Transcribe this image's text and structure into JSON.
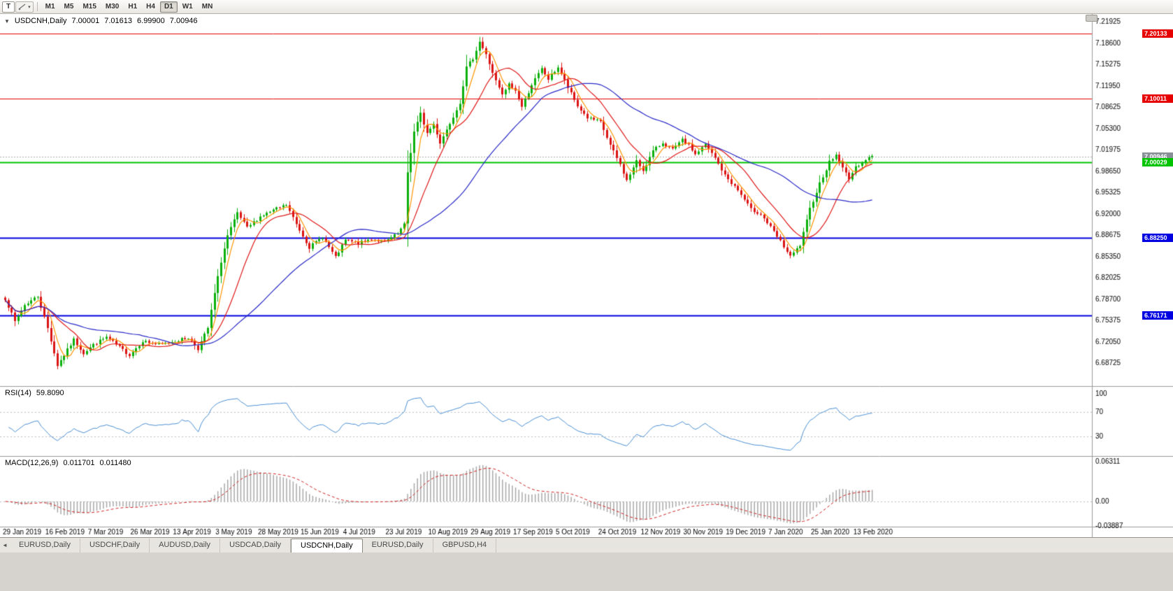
{
  "icons": {
    "chart_menu": "▼",
    "tool_caret": "▾",
    "tabs_scroll": "◄"
  },
  "toolbar": {
    "tool_button": "T",
    "timeframes": [
      "M1",
      "M5",
      "M15",
      "M30",
      "H1",
      "H4",
      "D1",
      "W1",
      "MN"
    ],
    "active_timeframe": "D1"
  },
  "chart": {
    "symbol_period": "USDCNH,Daily",
    "open": "7.00001",
    "high": "7.01613",
    "low": "6.99900",
    "close": "7.00946"
  },
  "indicators": {
    "rsi": {
      "name": "RSI(14)",
      "value": "59.8090"
    },
    "macd": {
      "name": "MACD(12,26,9)",
      "value_main": "0.011701",
      "value_signal": "0.011480"
    }
  },
  "tabs": [
    {
      "label": "EURUSD,Daily",
      "active": false
    },
    {
      "label": "USDCHF,Daily",
      "active": false
    },
    {
      "label": "AUDUSD,Daily",
      "active": false
    },
    {
      "label": "USDCAD,Daily",
      "active": false
    },
    {
      "label": "USDCNH,Daily",
      "active": true
    },
    {
      "label": "EURUSD,Daily",
      "active": false
    },
    {
      "label": "GBPUSD,H4",
      "active": false
    }
  ],
  "chart_data": {
    "type": "candlestick+indicators",
    "seed": 7,
    "num_bars": 266,
    "bars_per_label": 13,
    "price_range": {
      "min": 6.656,
      "max": 7.2285
    },
    "y_axis_ticks": [
      "7.21925",
      "7.18600",
      "7.15275",
      "7.11950",
      "7.08625",
      "7.05300",
      "7.01975",
      "6.98650",
      "6.95325",
      "6.92000",
      "6.88675",
      "6.85350",
      "6.82025",
      "6.78700",
      "6.75375",
      "6.72050",
      "6.68725",
      "6.65400"
    ],
    "x_axis_dates": [
      "29 Jan 2019",
      "16 Feb 2019",
      "7 Mar 2019",
      "26 Mar 2019",
      "13 Apr 2019",
      "3 May 2019",
      "28 May 2019",
      "15 Jun 2019",
      "4 Jul 2019",
      "23 Jul 2019",
      "10 Aug 2019",
      "29 Aug 2019",
      "17 Sep 2019",
      "5 Oct 2019",
      "24 Oct 2019",
      "12 Nov 2019",
      "30 Nov 2019",
      "19 Dec 2019",
      "7 Jan 2020",
      "25 Jan 2020",
      "13 Feb 2020"
    ],
    "anchors": [
      [
        0,
        6.788
      ],
      [
        3,
        6.752
      ],
      [
        6,
        6.778
      ],
      [
        10,
        6.792
      ],
      [
        13,
        6.742
      ],
      [
        16,
        6.684
      ],
      [
        18,
        6.7
      ],
      [
        21,
        6.724
      ],
      [
        24,
        6.703
      ],
      [
        27,
        6.716
      ],
      [
        31,
        6.728
      ],
      [
        35,
        6.712
      ],
      [
        38,
        6.7
      ],
      [
        42,
        6.722
      ],
      [
        47,
        6.716
      ],
      [
        52,
        6.722
      ],
      [
        56,
        6.727
      ],
      [
        59,
        6.71
      ],
      [
        62,
        6.742
      ],
      [
        64,
        6.796
      ],
      [
        66,
        6.846
      ],
      [
        68,
        6.886
      ],
      [
        71,
        6.921
      ],
      [
        74,
        6.898
      ],
      [
        78,
        6.916
      ],
      [
        83,
        6.928
      ],
      [
        86,
        6.934
      ],
      [
        89,
        6.904
      ],
      [
        93,
        6.868
      ],
      [
        97,
        6.884
      ],
      [
        101,
        6.852
      ],
      [
        104,
        6.879
      ],
      [
        108,
        6.874
      ],
      [
        112,
        6.881
      ],
      [
        116,
        6.876
      ],
      [
        120,
        6.889
      ],
      [
        122,
        6.903
      ],
      [
        123,
        6.985
      ],
      [
        125,
        7.048
      ],
      [
        127,
        7.076
      ],
      [
        129,
        7.046
      ],
      [
        131,
        7.06
      ],
      [
        133,
        7.031
      ],
      [
        136,
        7.062
      ],
      [
        139,
        7.094
      ],
      [
        141,
        7.148
      ],
      [
        143,
        7.163
      ],
      [
        145,
        7.189
      ],
      [
        147,
        7.168
      ],
      [
        150,
        7.127
      ],
      [
        152,
        7.105
      ],
      [
        154,
        7.122
      ],
      [
        156,
        7.112
      ],
      [
        158,
        7.087
      ],
      [
        161,
        7.122
      ],
      [
        164,
        7.146
      ],
      [
        166,
        7.13
      ],
      [
        169,
        7.149
      ],
      [
        172,
        7.117
      ],
      [
        175,
        7.088
      ],
      [
        178,
        7.07
      ],
      [
        182,
        7.063
      ],
      [
        185,
        7.027
      ],
      [
        188,
        6.997
      ],
      [
        190,
        6.972
      ],
      [
        193,
        7.002
      ],
      [
        195,
        6.988
      ],
      [
        198,
        7.018
      ],
      [
        201,
        7.031
      ],
      [
        204,
        7.02
      ],
      [
        207,
        7.035
      ],
      [
        209,
        7.027
      ],
      [
        211,
        7.013
      ],
      [
        214,
        7.028
      ],
      [
        217,
        7.007
      ],
      [
        220,
        6.98
      ],
      [
        224,
        6.957
      ],
      [
        228,
        6.927
      ],
      [
        231,
        6.92
      ],
      [
        234,
        6.899
      ],
      [
        237,
        6.877
      ],
      [
        240,
        6.853
      ],
      [
        243,
        6.871
      ],
      [
        246,
        6.928
      ],
      [
        249,
        6.968
      ],
      [
        252,
        7.001
      ],
      [
        254,
        7.012
      ],
      [
        256,
        6.991
      ],
      [
        258,
        6.976
      ],
      [
        260,
        6.992
      ],
      [
        262,
        7.002
      ],
      [
        265,
        7.0095
      ]
    ],
    "hlines": [
      {
        "price": 7.20133,
        "label": "7.20133",
        "color": "#e60000",
        "width": 1
      },
      {
        "price": 7.10011,
        "label": "7.10011",
        "color": "#e60000",
        "width": 1
      },
      {
        "price": 7.00029,
        "label": "7.00029",
        "color": "#00c400",
        "width": 2
      },
      {
        "price": 6.8825,
        "label": "6.88250",
        "color": "#0000e0",
        "width": 2
      },
      {
        "price": 6.76171,
        "label": "6.76171",
        "color": "#0000e0",
        "width": 2
      }
    ],
    "current_price": {
      "value": 7.00946,
      "label": "7.00946",
      "color": "#8a9098"
    },
    "ma": [
      {
        "period": 5,
        "color": "#ff9500"
      },
      {
        "period": 14,
        "color": "#e01818"
      },
      {
        "period": 42,
        "color": "#2a2ac8"
      }
    ],
    "rsi_period": 14,
    "rsi_levels": [
      70,
      30
    ],
    "rsi_axis": [
      "100",
      "70",
      "30"
    ],
    "macd_axis": [
      {
        "label": "0.06311",
        "value": 0.06311
      },
      {
        "label": "0.00",
        "value": 0
      },
      {
        "label": "-0.03887",
        "value": -0.03887
      }
    ],
    "colors": {
      "bull": "#0cb00c",
      "bear": "#dc1414",
      "rsi": "#4a8fd4",
      "macd_hist": "#a8a8a8",
      "macd_signal": "#d02020"
    }
  }
}
